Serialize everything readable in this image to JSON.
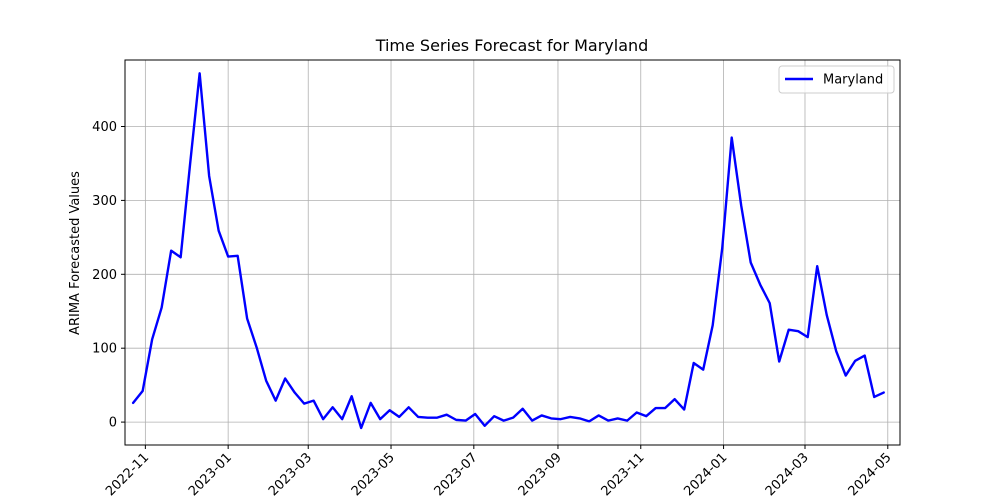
{
  "chart_data": {
    "type": "line",
    "title": "Time Series Forecast for Maryland",
    "xlabel": "",
    "ylabel": "ARIMA Forecasted Values",
    "x_ticks": [
      "2022-11",
      "2023-01",
      "2023-03",
      "2023-05",
      "2023-07",
      "2023-09",
      "2023-11",
      "2024-01",
      "2024-03",
      "2024-05"
    ],
    "y_ticks": [
      0,
      100,
      200,
      300,
      400
    ],
    "xlim": [
      "2022-10-17",
      "2024-05-10"
    ],
    "ylim": [
      -31,
      490
    ],
    "grid": true,
    "legend_position": "top-right",
    "series": [
      {
        "name": "Maryland",
        "color": "#0000ff",
        "x": [
          "2022-10-23",
          "2022-10-30",
          "2022-11-06",
          "2022-11-13",
          "2022-11-20",
          "2022-11-27",
          "2022-12-04",
          "2022-12-11",
          "2022-12-18",
          "2022-12-25",
          "2023-01-01",
          "2023-01-08",
          "2023-01-15",
          "2023-01-22",
          "2023-01-29",
          "2023-02-05",
          "2023-02-12",
          "2023-02-19",
          "2023-02-26",
          "2023-03-05",
          "2023-03-12",
          "2023-03-19",
          "2023-03-26",
          "2023-04-02",
          "2023-04-09",
          "2023-04-16",
          "2023-04-23",
          "2023-04-30",
          "2023-05-07",
          "2023-05-14",
          "2023-05-21",
          "2023-05-28",
          "2023-06-04",
          "2023-06-11",
          "2023-06-18",
          "2023-06-25",
          "2023-07-02",
          "2023-07-09",
          "2023-07-16",
          "2023-07-23",
          "2023-07-30",
          "2023-08-06",
          "2023-08-13",
          "2023-08-20",
          "2023-08-27",
          "2023-09-03",
          "2023-09-10",
          "2023-09-17",
          "2023-09-24",
          "2023-10-01",
          "2023-10-08",
          "2023-10-15",
          "2023-10-22",
          "2023-10-29",
          "2023-11-05",
          "2023-11-12",
          "2023-11-19",
          "2023-11-26",
          "2023-12-03",
          "2023-12-10",
          "2023-12-17",
          "2023-12-24",
          "2023-12-31",
          "2024-01-07",
          "2024-01-14",
          "2024-01-21",
          "2024-01-28",
          "2024-02-04",
          "2024-02-11",
          "2024-02-18",
          "2024-02-25",
          "2024-03-03",
          "2024-03-10",
          "2024-03-17",
          "2024-03-24",
          "2024-03-31",
          "2024-04-07",
          "2024-04-14",
          "2024-04-21",
          "2024-04-28"
        ],
        "y": [
          26,
          42,
          112,
          155,
          232,
          223,
          350,
          472,
          333,
          259,
          224,
          225,
          140,
          101,
          56,
          29,
          59,
          40,
          25,
          29,
          4,
          20,
          4,
          35,
          -8,
          26,
          4,
          16,
          7,
          20,
          7,
          6,
          6,
          10,
          3,
          2,
          11,
          -5,
          8,
          2,
          6,
          18,
          2,
          9,
          5,
          4,
          7,
          5,
          1,
          9,
          2,
          5,
          2,
          13,
          8,
          19,
          19,
          31,
          17,
          80,
          71,
          131,
          235,
          385,
          293,
          216,
          186,
          161,
          82,
          125,
          123,
          115,
          211,
          145,
          96,
          63,
          83,
          90,
          34,
          40
        ]
      }
    ]
  }
}
